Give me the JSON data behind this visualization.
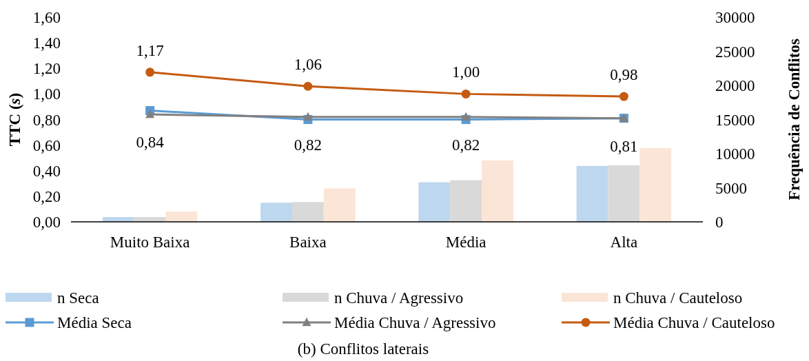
{
  "chart_data": {
    "type": "bar",
    "title": "(b) Conflitos laterais",
    "ylabel": "TTC (*s*)",
    "y2label": "Frequência de Conflitos",
    "categories": [
      "Muito Baixa",
      "Baixa",
      "Média",
      "Alta"
    ],
    "series": [
      {
        "name": "n Seca",
        "axis": "y2",
        "color": "#bdd7ee",
        "values": [
          700,
          2800,
          5800,
          8200
        ]
      },
      {
        "name": "n Chuva / Agressivo",
        "axis": "y2",
        "color": "#d9d9d9",
        "values": [
          700,
          2900,
          6100,
          8300
        ]
      },
      {
        "name": "n Chuva / Cauteloso",
        "axis": "y2",
        "color": "#fbe5d6",
        "values": [
          1500,
          4900,
          9000,
          10800
        ]
      },
      {
        "name": "Média Seca",
        "type": "line",
        "marker": "square",
        "color": "#5b9bd5",
        "values": [
          0.87,
          0.8,
          0.8,
          0.81
        ]
      },
      {
        "name": "Média Chuva / Agressivo",
        "type": "line",
        "marker": "triangle",
        "color": "#808080",
        "values": [
          0.84,
          0.82,
          0.82,
          0.81
        ],
        "value_labels": [
          "0,84",
          "0,82",
          "0,82",
          "0,81"
        ]
      },
      {
        "name": "Média Chuva / Cauteloso",
        "type": "line",
        "marker": "circle",
        "color": "#c55a11",
        "values": [
          1.17,
          1.06,
          1.0,
          0.98
        ],
        "value_labels": [
          "1,17",
          "1,06",
          "1,00",
          "0,98"
        ]
      }
    ],
    "ylim": [
      0,
      1.6
    ],
    "yticks": [
      {
        "value": 0,
        "label": "0,00"
      },
      {
        "value": 0.2,
        "label": "0,20"
      },
      {
        "value": 0.4,
        "label": "0,40"
      },
      {
        "value": 0.6,
        "label": "0,60"
      },
      {
        "value": 0.8,
        "label": "0,80"
      },
      {
        "value": 1,
        "label": "1,00"
      },
      {
        "value": 1.2,
        "label": "1,20"
      },
      {
        "value": 1.4,
        "label": "1,40"
      },
      {
        "value": 1.6,
        "label": "1,60"
      }
    ],
    "y2lim": [
      0,
      30000
    ],
    "y2ticks": [
      0,
      5000,
      10000,
      15000,
      20000,
      25000,
      30000
    ],
    "legend": "bottom",
    "grid": false
  }
}
